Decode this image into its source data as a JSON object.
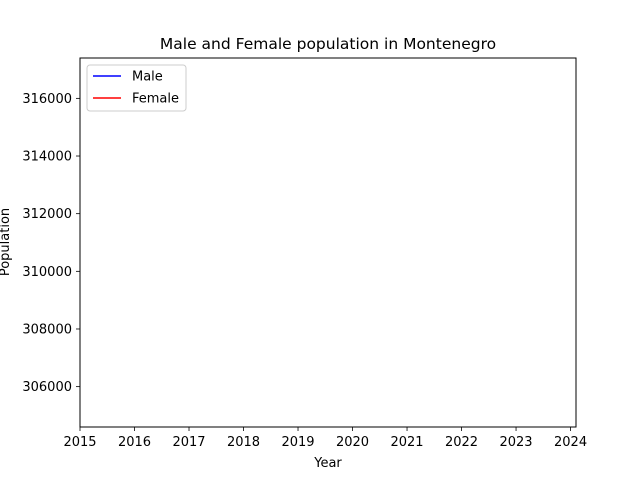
{
  "chart_data": {
    "type": "line",
    "title": "Male and Female population in Montenegro",
    "xlabel": "Year",
    "ylabel": "Population",
    "xlim": [
      2015,
      2024.1
    ],
    "ylim": [
      304600,
      317400
    ],
    "x_ticks": [
      2015,
      2016,
      2017,
      2018,
      2019,
      2020,
      2021,
      2022,
      2023,
      2024
    ],
    "y_ticks": [
      306000,
      308000,
      310000,
      312000,
      314000,
      316000
    ],
    "grid": false,
    "legend_position": "top-left",
    "series": [
      {
        "name": "Male",
        "color": "#0000ff",
        "values": []
      },
      {
        "name": "Female",
        "color": "#ff0000",
        "values": []
      }
    ]
  }
}
